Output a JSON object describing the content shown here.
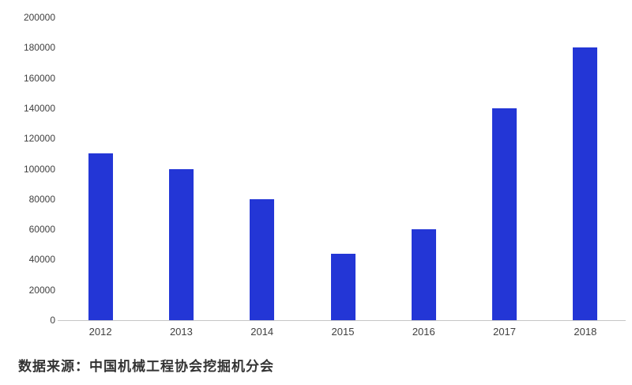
{
  "chart_data": {
    "type": "bar",
    "title": "",
    "categories": [
      "2012",
      "2013",
      "2014",
      "2015",
      "2016",
      "2017",
      "2018"
    ],
    "values": [
      110000,
      100000,
      80000,
      44000,
      60000,
      140000,
      180000
    ],
    "xlabel": "",
    "ylabel": "",
    "ylim": [
      0,
      200000
    ],
    "ytick_step": 20000,
    "grid": false,
    "legend": false,
    "bar_color": "#2336d6",
    "axis_line_color": "#c6c6c6",
    "tick_label_color": "#3f3f3f"
  },
  "source": {
    "text": "数据来源：中国机械工程协会挖掘机分会"
  }
}
